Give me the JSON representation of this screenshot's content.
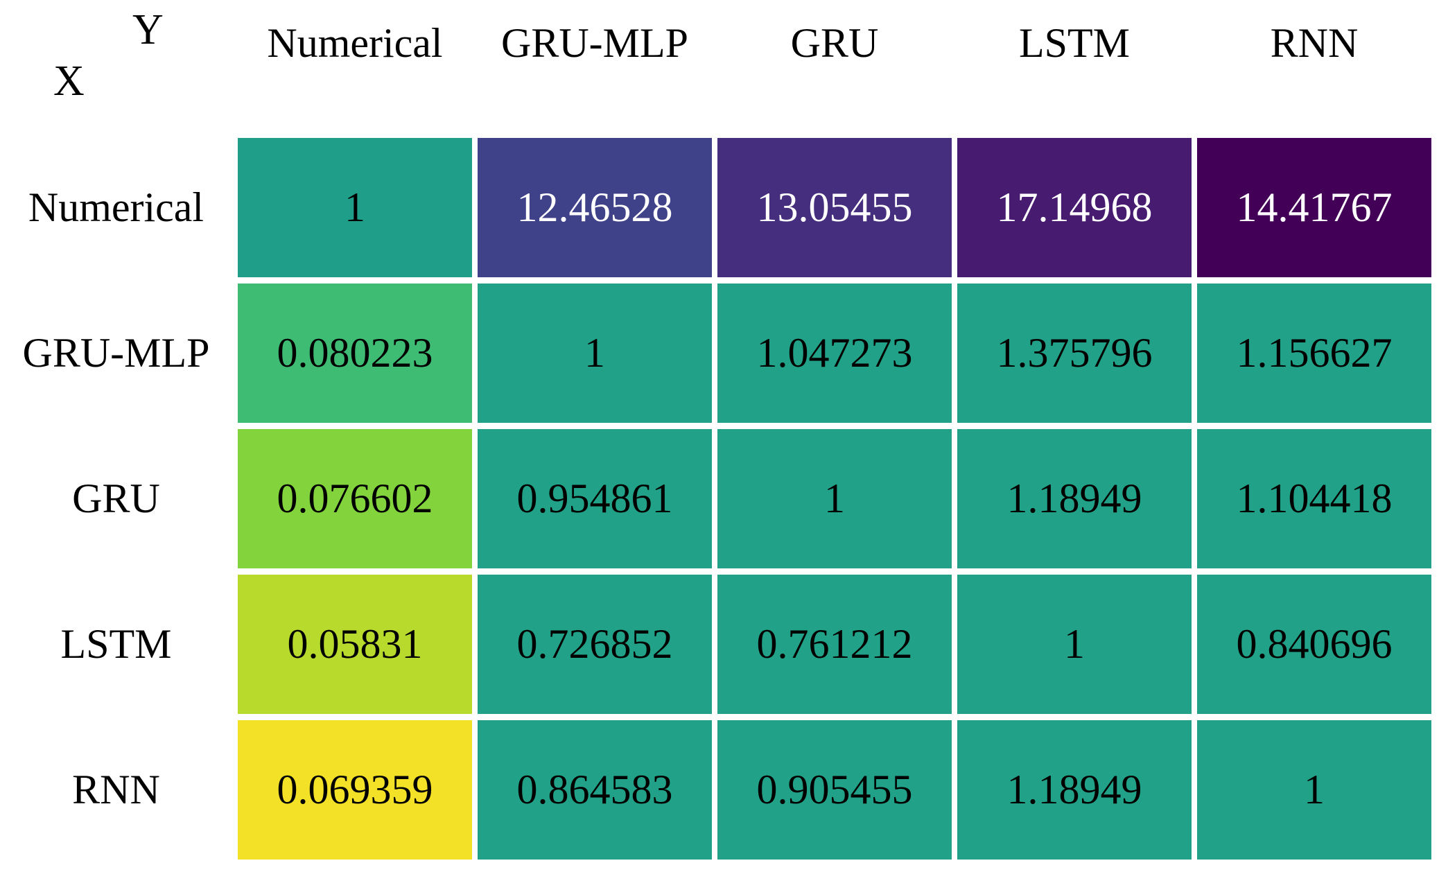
{
  "corner": {
    "x_label": "X",
    "y_label": "Y"
  },
  "columns": [
    "Numerical",
    "GRU-MLP",
    "GRU",
    "LSTM",
    "RNN"
  ],
  "rows": [
    {
      "label": "Numerical",
      "cells": [
        {
          "value": "1",
          "bg": "#1f9e8a",
          "fg": "#000000"
        },
        {
          "value": "12.46528",
          "bg": "#3f4189",
          "fg": "#ffffff"
        },
        {
          "value": "13.05455",
          "bg": "#462e7e",
          "fg": "#ffffff"
        },
        {
          "value": "17.14968",
          "bg": "#471c70",
          "fg": "#ffffff"
        },
        {
          "value": "14.41767",
          "bg": "#420157",
          "fg": "#ffffff"
        }
      ]
    },
    {
      "label": "GRU-MLP",
      "cells": [
        {
          "value": "0.080223",
          "bg": "#3ebc74",
          "fg": "#000000"
        },
        {
          "value": "1",
          "bg": "#21a187",
          "fg": "#000000"
        },
        {
          "value": "1.047273",
          "bg": "#21a187",
          "fg": "#000000"
        },
        {
          "value": "1.375796",
          "bg": "#21a187",
          "fg": "#000000"
        },
        {
          "value": "1.156627",
          "bg": "#21a187",
          "fg": "#000000"
        }
      ]
    },
    {
      "label": "GRU",
      "cells": [
        {
          "value": "0.076602",
          "bg": "#83d33d",
          "fg": "#000000"
        },
        {
          "value": "0.954861",
          "bg": "#21a187",
          "fg": "#000000"
        },
        {
          "value": "1",
          "bg": "#21a187",
          "fg": "#000000"
        },
        {
          "value": "1.18949",
          "bg": "#21a187",
          "fg": "#000000"
        },
        {
          "value": "1.104418",
          "bg": "#21a187",
          "fg": "#000000"
        }
      ]
    },
    {
      "label": "LSTM",
      "cells": [
        {
          "value": "0.05831",
          "bg": "#b7da2c",
          "fg": "#000000"
        },
        {
          "value": "0.726852",
          "bg": "#21a187",
          "fg": "#000000"
        },
        {
          "value": "0.761212",
          "bg": "#21a187",
          "fg": "#000000"
        },
        {
          "value": "1",
          "bg": "#21a187",
          "fg": "#000000"
        },
        {
          "value": "0.840696",
          "bg": "#21a187",
          "fg": "#000000"
        }
      ]
    },
    {
      "label": "RNN",
      "cells": [
        {
          "value": "0.069359",
          "bg": "#f3e127",
          "fg": "#000000"
        },
        {
          "value": "0.864583",
          "bg": "#21a187",
          "fg": "#000000"
        },
        {
          "value": "0.905455",
          "bg": "#21a187",
          "fg": "#000000"
        },
        {
          "value": "1.18949",
          "bg": "#21a187",
          "fg": "#000000"
        },
        {
          "value": "1",
          "bg": "#21a187",
          "fg": "#000000"
        }
      ]
    }
  ],
  "chart_data": {
    "type": "heatmap",
    "title": "",
    "x_axis_corner_label": "Y",
    "y_axis_corner_label": "X",
    "x_categories": [
      "Numerical",
      "GRU-MLP",
      "GRU",
      "LSTM",
      "RNN"
    ],
    "y_categories": [
      "Numerical",
      "GRU-MLP",
      "GRU",
      "LSTM",
      "RNN"
    ],
    "values": [
      [
        1,
        12.46528,
        13.05455,
        17.14968,
        14.41767
      ],
      [
        0.080223,
        1,
        1.047273,
        1.375796,
        1.156627
      ],
      [
        0.076602,
        0.954861,
        1,
        1.18949,
        1.104418
      ],
      [
        0.05831,
        0.726852,
        0.761212,
        1,
        0.840696
      ],
      [
        0.069359,
        0.864583,
        0.905455,
        1.18949,
        1
      ]
    ],
    "colormap": "viridis",
    "grid": false,
    "legend": "none",
    "cell_gap_color": "#ffffff"
  }
}
